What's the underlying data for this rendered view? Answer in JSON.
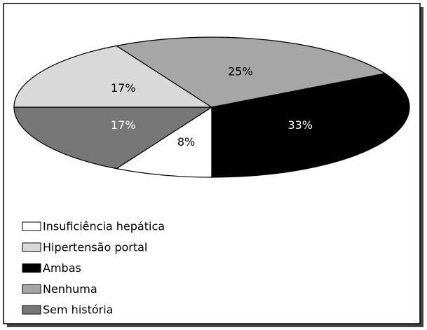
{
  "chart_data": {
    "type": "pie",
    "categories": [
      "Insuficiência hepática",
      "Hipertensão portal",
      "Ambas",
      "Nenhuma",
      "Sem história"
    ],
    "values": [
      8,
      17,
      33,
      25,
      17
    ],
    "value_labels": [
      "8%",
      "17%",
      "33%",
      "25%",
      "17%"
    ],
    "colors": [
      "#ffffff",
      "#d9d9d9",
      "#000000",
      "#a6a6a6",
      "#777777"
    ],
    "legend": "bottom-left"
  }
}
